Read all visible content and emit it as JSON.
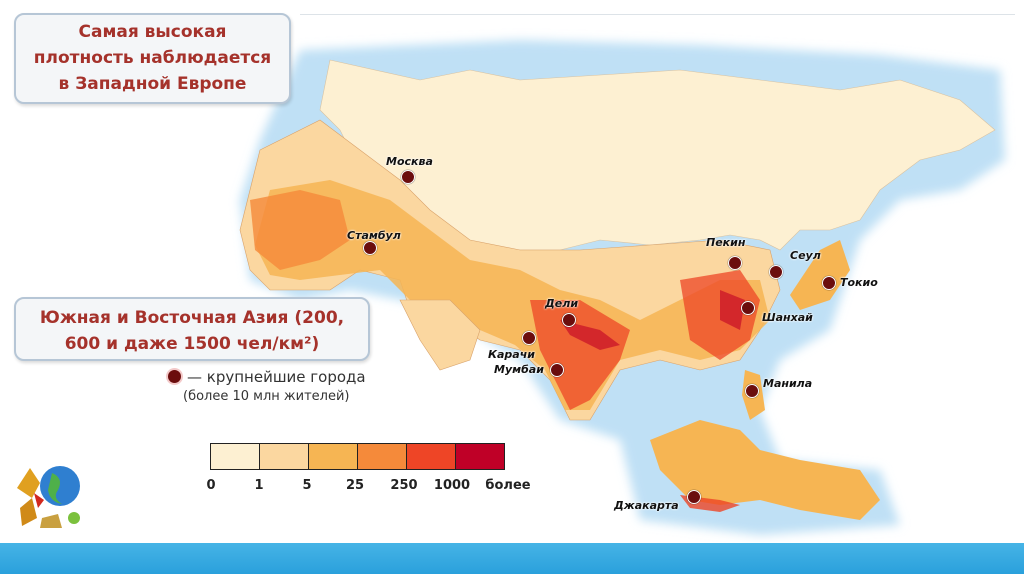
{
  "callouts": {
    "west_europe": [
      "Самая высокая",
      "плотность наблюдается",
      "в Западной Европе"
    ],
    "asia": [
      "Южная и Восточная Азия (200,",
      "600 и даже 1500 чел/км²)"
    ]
  },
  "legend": {
    "city_marker_label": "— крупнейшие города",
    "city_marker_sub": "(более 10 млн жителей)",
    "scale_colors": [
      "#fdf0d2",
      "#fbd7a0",
      "#f6b553",
      "#f58a3a",
      "#ee4526",
      "#bf0027"
    ],
    "scale_ticks": [
      "0",
      "1",
      "5",
      "25",
      "250",
      "1000",
      "более"
    ]
  },
  "cities": [
    {
      "name": "Москва"
    },
    {
      "name": "Стамбул"
    },
    {
      "name": "Пекин"
    },
    {
      "name": "Сеул"
    },
    {
      "name": "Токио"
    },
    {
      "name": "Дели"
    },
    {
      "name": "Шанхай"
    },
    {
      "name": "Карачи"
    },
    {
      "name": "Мумбаи"
    },
    {
      "name": "Манила"
    },
    {
      "name": "Джакарта"
    }
  ],
  "colors": {
    "city_dot": "#6b0d0d",
    "callout_text": "#a5322b",
    "band": "#2aa0dc"
  }
}
